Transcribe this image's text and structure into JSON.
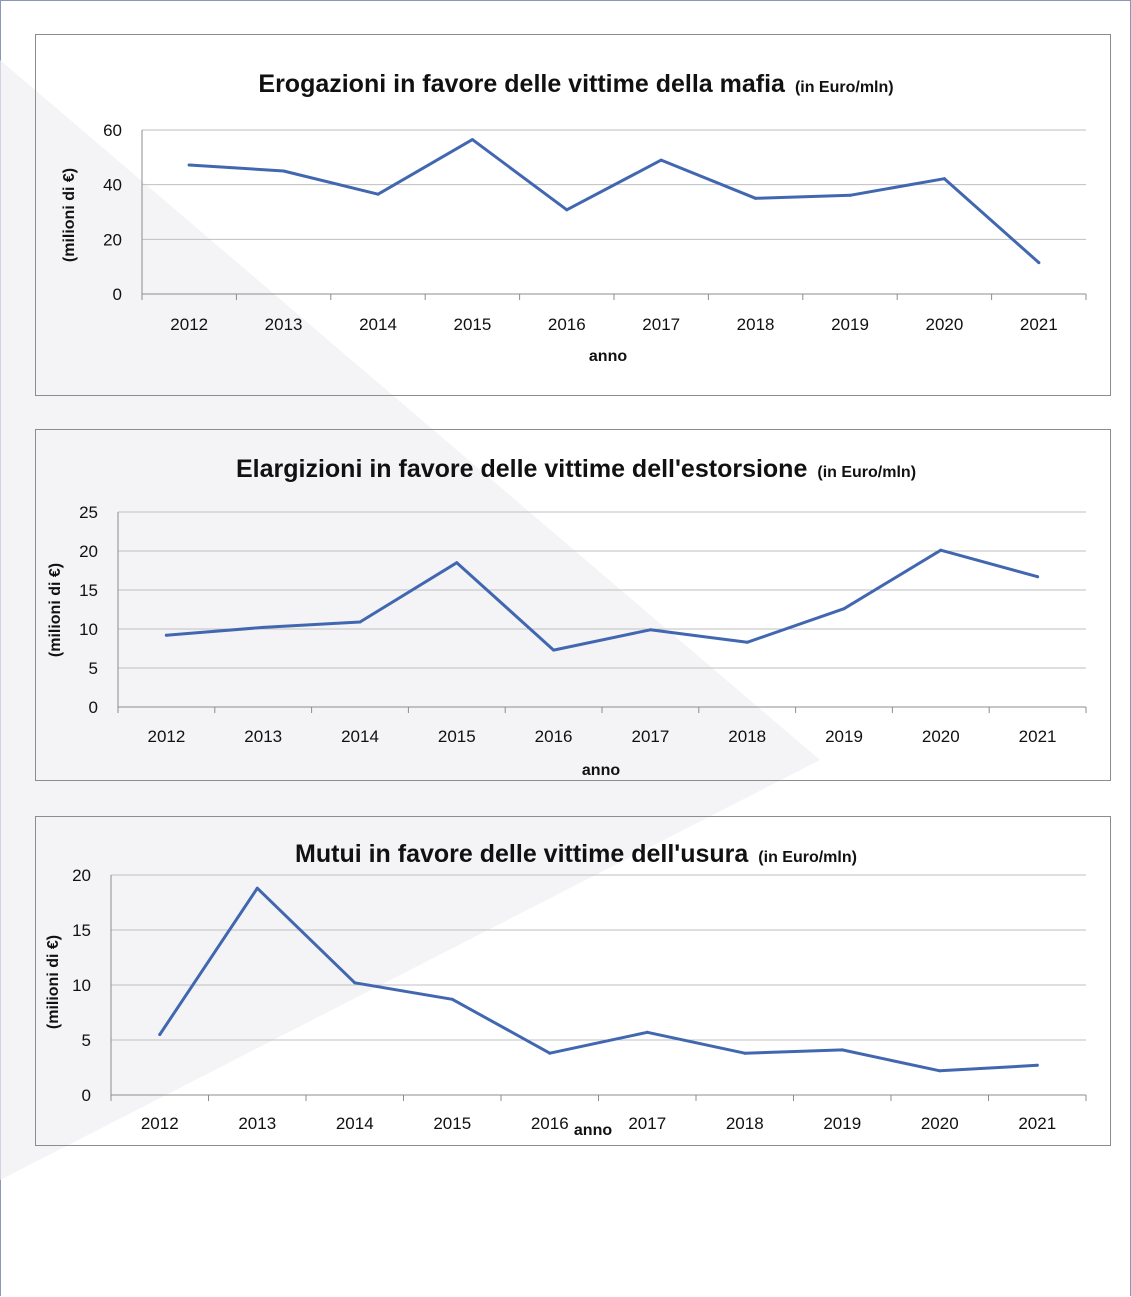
{
  "chart_data": [
    {
      "type": "line",
      "title": "Erogazioni in favore delle vittime della mafia",
      "subtitle": "(in Euro/mln)",
      "xlabel": "anno",
      "ylabel": "(milioni di €)",
      "categories": [
        "2012",
        "2013",
        "2014",
        "2015",
        "2016",
        "2017",
        "2018",
        "2019",
        "2020",
        "2021"
      ],
      "yticks": [
        "0",
        "20",
        "40",
        "60"
      ],
      "ylim": [
        0,
        60
      ],
      "series": [
        {
          "values": [
            47.2,
            45.0,
            36.5,
            56.5,
            30.8,
            49.0,
            35.0,
            36.1,
            42.2,
            11.5
          ]
        }
      ],
      "grid": true,
      "line_color": "#4267b1"
    },
    {
      "type": "line",
      "title": "Elargizioni in favore delle vittime dell'estorsione",
      "subtitle": "(in Euro/mln)",
      "xlabel": "anno",
      "ylabel": "(milioni di €)",
      "categories": [
        "2012",
        "2013",
        "2014",
        "2015",
        "2016",
        "2017",
        "2018",
        "2019",
        "2020",
        "2021"
      ],
      "yticks": [
        "0",
        "5",
        "10",
        "15",
        "20",
        "25"
      ],
      "ylim": [
        0,
        25
      ],
      "series": [
        {
          "values": [
            9.2,
            10.2,
            10.9,
            18.5,
            7.3,
            9.9,
            8.3,
            12.6,
            20.1,
            16.7
          ]
        }
      ],
      "grid": true,
      "line_color": "#4267b1"
    },
    {
      "type": "line",
      "title": "Mutui in favore delle vittime dell'usura",
      "subtitle": "(in Euro/mln)",
      "xlabel": "anno",
      "ylabel": "(milioni di €)",
      "categories": [
        "2012",
        "2013",
        "2014",
        "2015",
        "2016",
        "2017",
        "2018",
        "2019",
        "2020",
        "2021"
      ],
      "yticks": [
        "0",
        "5",
        "10",
        "15",
        "20"
      ],
      "ylim": [
        0,
        20
      ],
      "series": [
        {
          "values": [
            5.5,
            18.8,
            10.2,
            8.7,
            3.8,
            5.7,
            3.8,
            4.1,
            2.2,
            2.7
          ]
        }
      ],
      "grid": true,
      "line_color": "#4267b1"
    }
  ]
}
